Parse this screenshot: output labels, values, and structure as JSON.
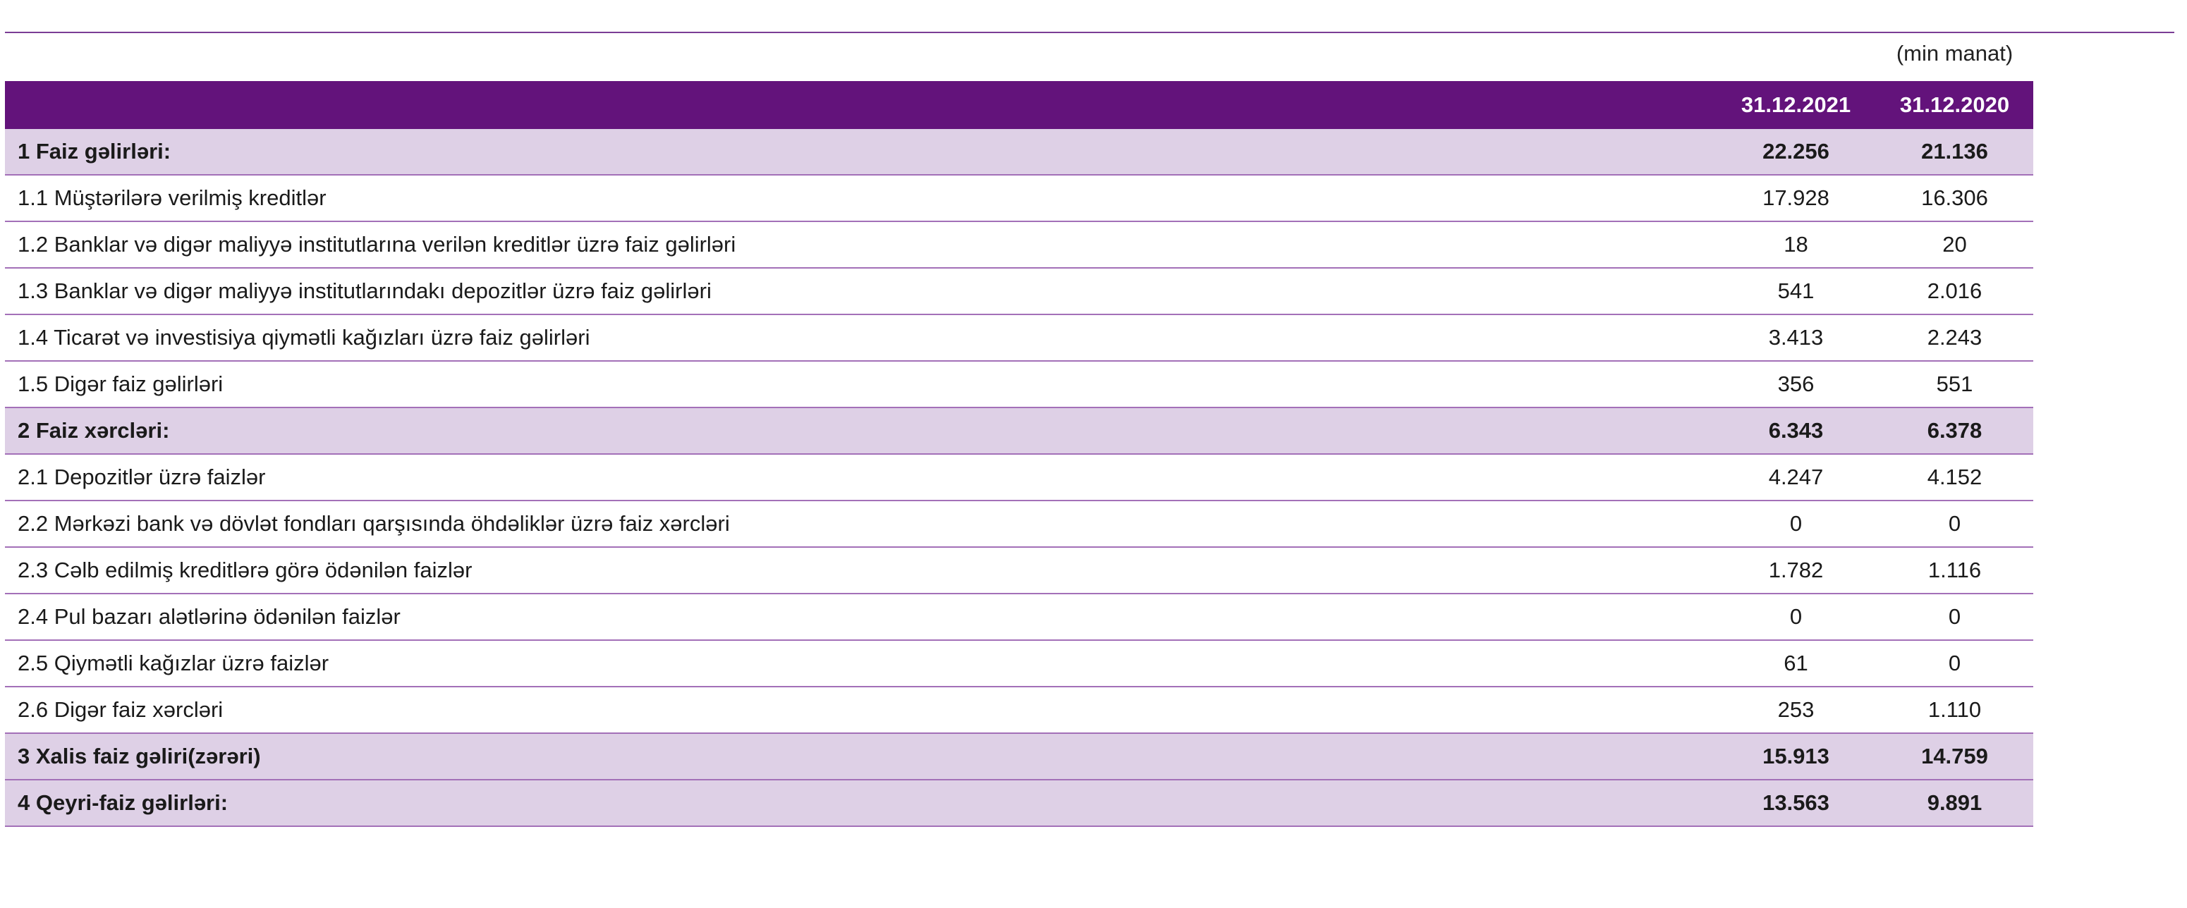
{
  "unit_label": "(min manat)",
  "columns": [
    "",
    "31.12.2021",
    "31.12.2020"
  ],
  "rows": [
    {
      "label": "1 Faiz gəlirləri:",
      "v2021": "22.256",
      "v2020": "21.136",
      "section": true
    },
    {
      "label": "1.1 Müştərilərə verilmiş kreditlər",
      "v2021": "17.928",
      "v2020": "16.306"
    },
    {
      "label": "1.2 Banklar və digər maliyyə institutlarına verilən kreditlər üzrə faiz gəlirləri",
      "v2021": "18",
      "v2020": "20"
    },
    {
      "label": "1.3 Banklar və digər maliyyə institutlarındakı depozitlər üzrə faiz gəlirləri",
      "v2021": "541",
      "v2020": "2.016"
    },
    {
      "label": "1.4 Ticarət və investisiya qiymətli kağızları üzrə faiz gəlirləri",
      "v2021": "3.413",
      "v2020": "2.243"
    },
    {
      "label": "1.5 Digər faiz gəlirləri",
      "v2021": "356",
      "v2020": "551"
    },
    {
      "label": "2 Faiz xərcləri:",
      "v2021": "6.343",
      "v2020": "6.378",
      "section": true
    },
    {
      "label": "2.1 Depozitlər üzrə faizlər",
      "v2021": "4.247",
      "v2020": "4.152"
    },
    {
      "label": "2.2 Mərkəzi bank və dövlət fondları qarşısında öhdəliklər üzrə faiz xərcləri",
      "v2021": "0",
      "v2020": "0"
    },
    {
      "label": "2.3 Cəlb edilmiş kreditlərə görə ödənilən faizlər",
      "v2021": "1.782",
      "v2020": "1.116"
    },
    {
      "label": "2.4 Pul bazarı alətlərinə ödənilən faizlər",
      "v2021": "0",
      "v2020": "0"
    },
    {
      "label": "2.5 Qiymətli kağızlar üzrə faizlər",
      "v2021": "61",
      "v2020": "0"
    },
    {
      "label": "2.6 Digər faiz xərcləri",
      "v2021": "253",
      "v2020": "1.110"
    },
    {
      "label": "3 Xalis faiz gəliri(zərəri)",
      "v2021": "15.913",
      "v2020": "14.759",
      "section": true
    },
    {
      "label": "4 Qeyri-faiz gəlirləri:",
      "v2021": "13.563",
      "v2020": "9.891",
      "section": true
    }
  ],
  "colors": {
    "header": "#63137b",
    "section_row": "#ded0e6",
    "rule": "#a370b8"
  }
}
